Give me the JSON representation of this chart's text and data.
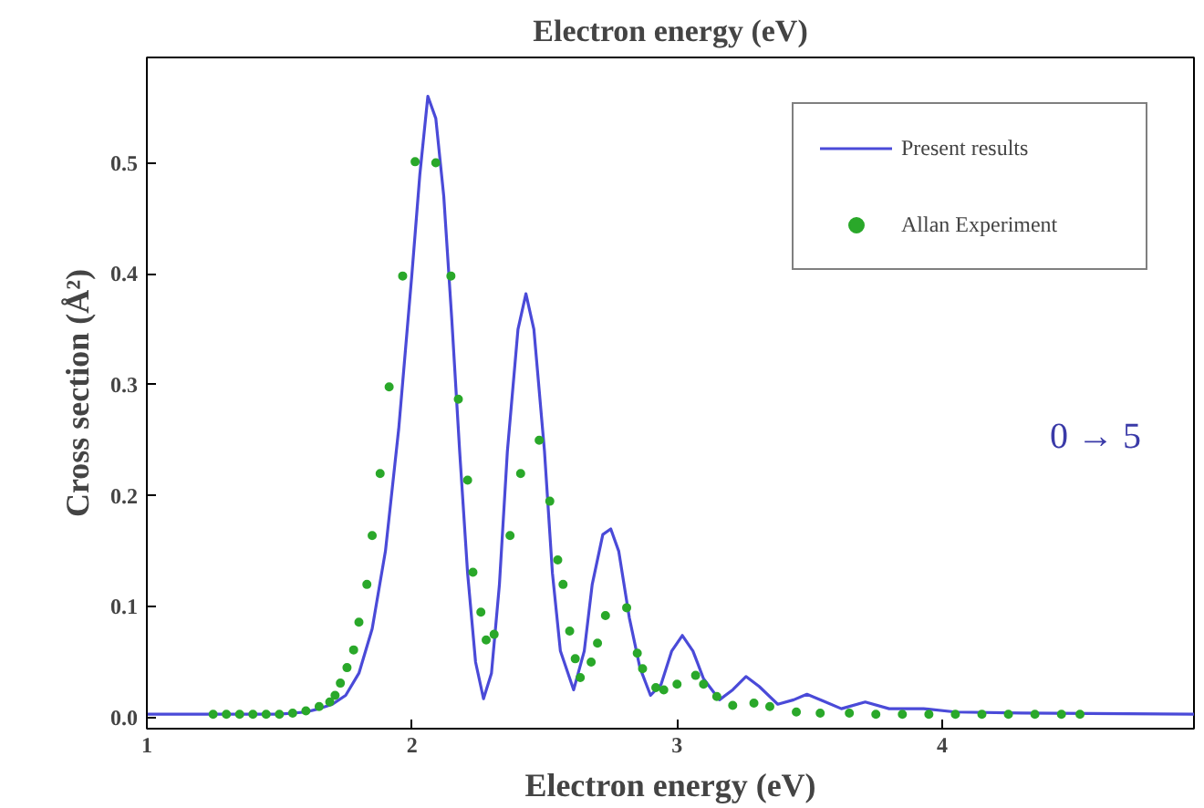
{
  "chart_data": {
    "type": "line",
    "title": "Electron energy (eV)",
    "xlabel": "Electron energy (eV)",
    "ylabel": "Cross section (Å²)",
    "xlim": [
      1,
      4.95
    ],
    "ylim": [
      -0.01,
      0.595
    ],
    "xticks": [
      1,
      2,
      3,
      4
    ],
    "yticks": [
      {
        "value": 0,
        "label": "0.0"
      },
      0.1,
      0.2,
      0.3,
      0.4,
      0.5
    ],
    "grid": false,
    "legend": "top right",
    "annotations": [
      "0 → 5"
    ],
    "series": [
      {
        "name": "Present results",
        "color": "#4a4ad8",
        "marker": "none",
        "line_style": "solid",
        "x": [
          1,
          1.5,
          1.6,
          1.65,
          1.7,
          1.75,
          1.8,
          1.85,
          1.9,
          1.95,
          2.0,
          2.03,
          2.06,
          2.09,
          2.12,
          2.15,
          2.18,
          2.21,
          2.24,
          2.27,
          2.3,
          2.33,
          2.36,
          2.4,
          2.43,
          2.46,
          2.5,
          2.53,
          2.56,
          2.61,
          2.65,
          2.68,
          2.72,
          2.75,
          2.78,
          2.82,
          2.86,
          2.9,
          2.94,
          2.98,
          3.02,
          3.06,
          3.1,
          3.16,
          3.21,
          3.26,
          3.31,
          3.38,
          3.44,
          3.49,
          3.55,
          3.62,
          3.71,
          3.8,
          3.93,
          4.05,
          4.3,
          4.95
        ],
        "values": [
          0.003,
          0.003,
          0.005,
          0.008,
          0.012,
          0.02,
          0.04,
          0.08,
          0.15,
          0.26,
          0.4,
          0.49,
          0.56,
          0.54,
          0.47,
          0.36,
          0.24,
          0.13,
          0.05,
          0.017,
          0.04,
          0.12,
          0.24,
          0.35,
          0.382,
          0.35,
          0.24,
          0.13,
          0.06,
          0.025,
          0.06,
          0.12,
          0.165,
          0.17,
          0.15,
          0.09,
          0.045,
          0.02,
          0.03,
          0.06,
          0.074,
          0.06,
          0.035,
          0.016,
          0.025,
          0.037,
          0.028,
          0.012,
          0.016,
          0.021,
          0.015,
          0.008,
          0.014,
          0.008,
          0.008,
          0.005,
          0.004,
          0.003
        ]
      },
      {
        "name": "Allan Experiment",
        "type": "scatter",
        "color": "#2aa82a",
        "marker": "circle",
        "x": [
          1.25,
          1.3,
          1.35,
          1.4,
          1.45,
          1.5,
          1.55,
          1.6,
          1.65,
          1.69,
          1.71,
          1.73,
          1.755,
          1.78,
          1.8,
          1.83,
          1.85,
          1.88,
          1.914,
          1.965,
          2.012,
          2.09,
          2.147,
          2.175,
          2.21,
          2.23,
          2.26,
          2.28,
          2.31,
          2.37,
          2.41,
          2.48,
          2.52,
          2.55,
          2.57,
          2.595,
          2.616,
          2.635,
          2.676,
          2.7,
          2.73,
          2.81,
          2.85,
          2.87,
          2.92,
          2.95,
          3.0,
          3.07,
          3.1,
          3.15,
          3.21,
          3.29,
          3.35,
          3.45,
          3.54,
          3.65,
          3.75,
          3.85,
          3.95,
          4.05,
          4.15,
          4.25,
          4.35,
          4.45,
          4.52
        ],
        "values": [
          0.003,
          0.003,
          0.003,
          0.003,
          0.003,
          0.003,
          0.004,
          0.006,
          0.01,
          0.014,
          0.02,
          0.031,
          0.045,
          0.061,
          0.086,
          0.12,
          0.164,
          0.22,
          0.298,
          0.398,
          0.501,
          0.5,
          0.398,
          0.287,
          0.214,
          0.131,
          0.095,
          0.07,
          0.075,
          0.164,
          0.22,
          0.25,
          0.195,
          0.142,
          0.12,
          0.078,
          0.053,
          0.036,
          0.05,
          0.067,
          0.092,
          0.099,
          0.058,
          0.044,
          0.027,
          0.025,
          0.03,
          0.038,
          0.03,
          0.019,
          0.011,
          0.013,
          0.01,
          0.005,
          0.004,
          0.004,
          0.003,
          0.003,
          0.003,
          0.003,
          0.003,
          0.003,
          0.003,
          0.003,
          0.003
        ]
      }
    ]
  }
}
